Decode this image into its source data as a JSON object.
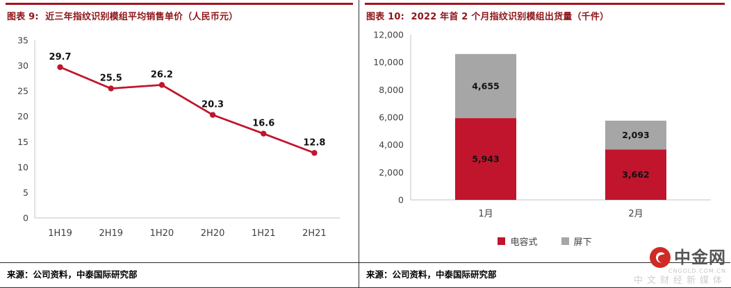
{
  "panels": {
    "left": {
      "title": "图表 9:  近三年指纹识别模组平均销售单价（人民币元）",
      "source": "来源：公司资料，中泰国际研究部"
    },
    "right": {
      "title": "图表 10:  2022 年首 2 个月指纹识别模组出货量（千件）",
      "source": "来源：公司资料，中泰国际研究部"
    }
  },
  "branding": {
    "brand": "中金网",
    "domain": "CNGOLD.COM.CN",
    "tagline": "中文财经新媒体"
  },
  "colors": {
    "accent_red": "#c0152c",
    "title_red": "#8e1418",
    "bar_gray": "#a6a6a6"
  },
  "chart_data": [
    {
      "type": "line",
      "title": "近三年指纹识别模组平均销售单价（人民币元）",
      "categories": [
        "1H19",
        "2H19",
        "1H20",
        "2H20",
        "1H21",
        "2H21"
      ],
      "values": [
        29.7,
        25.5,
        26.2,
        20.3,
        16.6,
        12.8
      ],
      "xlabel": "",
      "ylabel": "",
      "ylim": [
        0,
        35
      ],
      "ytick_step": 5,
      "grid": false,
      "line_color": "#c0152c",
      "data_labels": true
    },
    {
      "type": "bar",
      "stacked": true,
      "title": "2022 年首 2 个月指纹识别模组出货量（千件）",
      "categories": [
        "1月",
        "2月"
      ],
      "series": [
        {
          "name": "电容式",
          "color": "#c0152c",
          "values": [
            5943,
            3662
          ]
        },
        {
          "name": "屏下",
          "color": "#a6a6a6",
          "values": [
            4655,
            2093
          ]
        }
      ],
      "xlabel": "",
      "ylabel": "",
      "ylim": [
        0,
        12000
      ],
      "ytick_step": 2000,
      "grid": false,
      "legend_position": "bottom",
      "data_labels": true
    }
  ]
}
